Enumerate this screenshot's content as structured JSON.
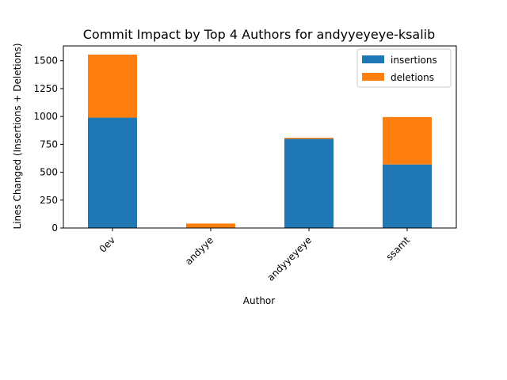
{
  "chart_data": {
    "type": "bar",
    "stacked": true,
    "title": "Commit Impact by Top 4 Authors for andyyeyeye-ksalib",
    "xlabel": "Author",
    "ylabel": "Lines Changed (Insertions + Deletions)",
    "categories": [
      "0ev",
      "andyye",
      "andyyeyeye",
      "ssamt"
    ],
    "series": [
      {
        "name": "insertions",
        "color": "#1f77b4",
        "values": [
          990,
          3,
          800,
          570
        ]
      },
      {
        "name": "deletions",
        "color": "#ff7f0e",
        "values": [
          565,
          37,
          10,
          425
        ]
      }
    ],
    "ylim": [
      0,
      1633
    ],
    "yticks": [
      0,
      250,
      500,
      750,
      1000,
      1250,
      1500
    ],
    "grid": false,
    "legend_position": "top-right"
  }
}
